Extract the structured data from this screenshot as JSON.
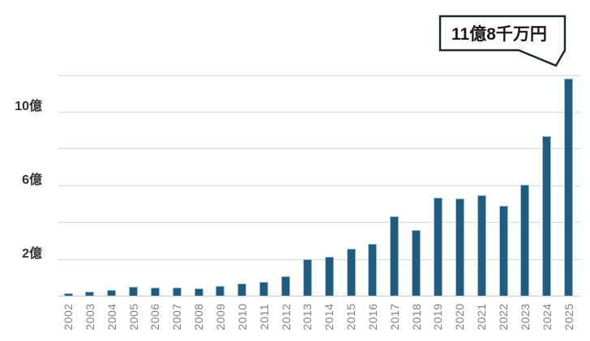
{
  "chart_data": {
    "type": "bar",
    "title": "",
    "xlabel": "",
    "ylabel": "",
    "unit": "億円",
    "categories": [
      "2002",
      "2003",
      "2004",
      "2005",
      "2006",
      "2007",
      "2008",
      "2009",
      "2010",
      "2011",
      "2012",
      "2013",
      "2014",
      "2015",
      "2016",
      "2017",
      "2018",
      "2019",
      "2020",
      "2021",
      "2022",
      "2023",
      "2024",
      "2025"
    ],
    "values": [
      0.13,
      0.22,
      0.3,
      0.48,
      0.44,
      0.45,
      0.4,
      0.52,
      0.65,
      0.75,
      1.05,
      2.0,
      2.1,
      2.55,
      2.8,
      4.3,
      3.55,
      5.35,
      5.3,
      5.45,
      4.9,
      6.05,
      8.7,
      11.8
    ],
    "ylim": [
      0,
      12.6
    ],
    "grid": "horizontal",
    "y_gridline_values": [
      2,
      4,
      6,
      8,
      10,
      12
    ],
    "y_ticks": [
      {
        "value": 2,
        "label": "2億"
      },
      {
        "value": 6,
        "label": "6億"
      },
      {
        "value": 10,
        "label": "10億"
      }
    ],
    "annotation": {
      "text": "11億8千万円",
      "target_category": "2025",
      "target_value": 11.8
    },
    "colors": {
      "background": "#ffffff",
      "bar_fill": "#1f5c7e",
      "bar_border": "#9cc0da",
      "gridline": "#d9d9d9",
      "axis_line": "#c8c8c8",
      "y_tick_label": "#333333",
      "x_tick_label": "#7f7f7f",
      "callout_border": "#1c2a36",
      "callout_fill": "#ffffff",
      "callout_text": "#1a1a1a"
    }
  }
}
